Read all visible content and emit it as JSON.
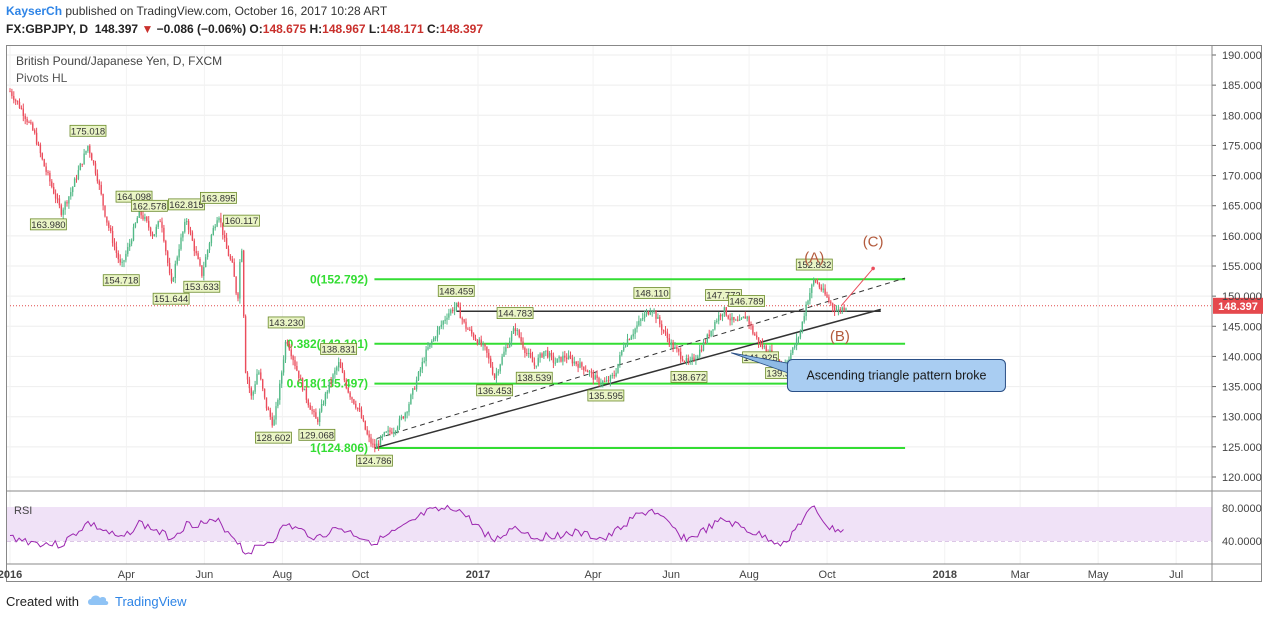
{
  "header": {
    "author": "KayserCh",
    "published": "published on TradingView.com, October 16, 2017 10:28 ART",
    "symbol_line": "FX:GBPJPY, D",
    "last": "148.397",
    "arrow": "▼",
    "change": "−0.086 (−0.06%)",
    "o_label": "O:",
    "o": "148.675",
    "h_label": "H:",
    "h": "148.967",
    "l_label": "L:",
    "l": "148.171",
    "c_label": "C:",
    "c": "148.397"
  },
  "instrument": "British Pound/Japanese Yen, D, FXCM",
  "indicator": "Pivots HL",
  "rsi_label": "RSI",
  "footer": {
    "created_with": "Created with",
    "brand": "TradingView"
  },
  "colors": {
    "up": "#53b987",
    "down": "#eb4d5c",
    "fib": "#33dd33",
    "rsi": "#9c27b0",
    "wave": "#b35a3c",
    "price_line": "#e04a4a"
  },
  "chart_data": {
    "type": "line",
    "title": "British Pound/Japanese Yen, D, FXCM",
    "price_axis": {
      "ticks": [
        120,
        125,
        130,
        135,
        140,
        145,
        150,
        155,
        160,
        165,
        170,
        175,
        180,
        185,
        190
      ],
      "tick_labels": [
        "120.000",
        "125.000",
        "130.000",
        "135.000",
        "140.000",
        "145.000",
        "150.000",
        "155.000",
        "160.000",
        "165.000",
        "170.000",
        "175.000",
        "180.000",
        "185.000",
        "190.000"
      ]
    },
    "time_axis": {
      "labels": [
        "2016",
        "Apr",
        "Jun",
        "Aug",
        "Oct",
        "2017",
        "Apr",
        "Jun",
        "Aug",
        "Oct",
        "2018",
        "Mar",
        "May",
        "Jul"
      ],
      "values": [
        "2016-01-01",
        "2016-04-01",
        "2016-06-01",
        "2016-08-01",
        "2016-10-01",
        "2017-01-01",
        "2017-04-01",
        "2017-06-01",
        "2017-08-01",
        "2017-10-01",
        "2018-01-01",
        "2018-03-01",
        "2018-05-01",
        "2018-07-01"
      ]
    },
    "series": [
      {
        "values": [
          [
            "2016-01-01",
            184.0
          ],
          [
            "2016-01-10",
            181.0
          ],
          [
            "2016-01-20",
            177.0
          ],
          [
            "2016-01-27",
            172.0
          ],
          [
            "2016-02-03",
            168.0
          ],
          [
            "2016-02-10",
            164.0
          ],
          [
            "2016-02-17",
            167.0
          ],
          [
            "2016-02-24",
            171.0
          ],
          [
            "2016-03-02",
            175.0
          ],
          [
            "2016-03-09",
            170.0
          ],
          [
            "2016-03-16",
            163.0
          ],
          [
            "2016-03-23",
            158.0
          ],
          [
            "2016-03-28",
            154.7
          ],
          [
            "2016-04-04",
            159.0
          ],
          [
            "2016-04-11",
            164.0
          ],
          [
            "2016-04-16",
            162.5
          ],
          [
            "2016-04-22",
            160.0
          ],
          [
            "2016-04-28",
            163.0
          ],
          [
            "2016-05-03",
            156.0
          ],
          [
            "2016-05-06",
            151.6
          ],
          [
            "2016-05-12",
            158.0
          ],
          [
            "2016-05-18",
            162.8
          ],
          [
            "2016-05-24",
            158.0
          ],
          [
            "2016-05-30",
            153.6
          ],
          [
            "2016-06-05",
            159.0
          ],
          [
            "2016-06-12",
            163.9
          ],
          [
            "2016-06-18",
            158.0
          ],
          [
            "2016-06-23",
            155.0
          ],
          [
            "2016-06-27",
            149.0
          ],
          [
            "2016-06-30",
            160.1
          ],
          [
            "2016-07-03",
            138.0
          ],
          [
            "2016-07-08",
            133.0
          ],
          [
            "2016-07-13",
            138.0
          ],
          [
            "2016-07-19",
            132.0
          ],
          [
            "2016-07-25",
            128.6
          ],
          [
            "2016-07-30",
            135.0
          ],
          [
            "2016-08-04",
            143.2
          ],
          [
            "2016-08-12",
            138.0
          ],
          [
            "2016-08-20",
            133.0
          ],
          [
            "2016-08-28",
            129.1
          ],
          [
            "2016-09-06",
            135.0
          ],
          [
            "2016-09-14",
            138.8
          ],
          [
            "2016-09-22",
            134.0
          ],
          [
            "2016-09-30",
            131.0
          ],
          [
            "2016-10-07",
            126.5
          ],
          [
            "2016-10-12",
            124.8
          ],
          [
            "2016-10-20",
            127.0
          ],
          [
            "2016-10-28",
            128.0
          ],
          [
            "2016-11-06",
            131.0
          ],
          [
            "2016-11-14",
            136.0
          ],
          [
            "2016-11-22",
            141.0
          ],
          [
            "2016-11-30",
            144.0
          ],
          [
            "2016-12-08",
            147.0
          ],
          [
            "2016-12-15",
            148.5
          ],
          [
            "2016-12-22",
            145.0
          ],
          [
            "2016-12-30",
            143.0
          ],
          [
            "2017-01-07",
            141.0
          ],
          [
            "2017-01-14",
            136.5
          ],
          [
            "2017-01-22",
            141.0
          ],
          [
            "2017-01-30",
            144.8
          ],
          [
            "2017-02-07",
            141.0
          ],
          [
            "2017-02-14",
            138.5
          ],
          [
            "2017-02-22",
            141.0
          ],
          [
            "2017-03-02",
            139.0
          ],
          [
            "2017-03-10",
            140.0
          ],
          [
            "2017-03-18",
            139.0
          ],
          [
            "2017-03-26",
            138.0
          ],
          [
            "2017-04-04",
            136.0
          ],
          [
            "2017-04-11",
            135.6
          ],
          [
            "2017-04-18",
            137.0
          ],
          [
            "2017-04-25",
            142.0
          ],
          [
            "2017-05-02",
            144.0
          ],
          [
            "2017-05-10",
            146.5
          ],
          [
            "2017-05-17",
            148.1
          ],
          [
            "2017-05-24",
            145.0
          ],
          [
            "2017-06-01",
            142.0
          ],
          [
            "2017-06-09",
            140.0
          ],
          [
            "2017-06-15",
            138.7
          ],
          [
            "2017-06-22",
            140.5
          ],
          [
            "2017-06-29",
            143.0
          ],
          [
            "2017-07-06",
            146.0
          ],
          [
            "2017-07-12",
            147.8
          ],
          [
            "2017-07-18",
            146.0
          ],
          [
            "2017-07-24",
            145.5
          ],
          [
            "2017-07-30",
            146.8
          ],
          [
            "2017-08-04",
            144.0
          ],
          [
            "2017-08-10",
            141.9
          ],
          [
            "2017-08-16",
            141.0
          ],
          [
            "2017-08-22",
            139.5
          ],
          [
            "2017-08-28",
            138.5
          ],
          [
            "2017-09-04",
            141.0
          ],
          [
            "2017-09-10",
            144.0
          ],
          [
            "2017-09-15",
            149.0
          ],
          [
            "2017-09-21",
            152.8
          ],
          [
            "2017-09-27",
            151.0
          ],
          [
            "2017-10-03",
            149.0
          ],
          [
            "2017-10-09",
            147.5
          ],
          [
            "2017-10-16",
            148.4
          ]
        ]
      }
    ],
    "pivot_labels": [
      {
        "date": "2016-03-02",
        "price": 175.018,
        "label": "175.018"
      },
      {
        "date": "2016-01-31",
        "price": 163.98,
        "label": "163.980"
      },
      {
        "date": "2016-04-07",
        "price": 164.098,
        "label": "164.098"
      },
      {
        "date": "2016-04-19",
        "price": 162.578,
        "label": "162.578"
      },
      {
        "date": "2016-05-18",
        "price": 162.815,
        "label": "162.815"
      },
      {
        "date": "2016-06-12",
        "price": 163.895,
        "label": "163.895"
      },
      {
        "date": "2016-06-30",
        "price": 160.117,
        "label": "160.117"
      },
      {
        "date": "2016-03-28",
        "price": 154.718,
        "label": "154.718"
      },
      {
        "date": "2016-05-06",
        "price": 151.644,
        "label": "151.644"
      },
      {
        "date": "2016-05-30",
        "price": 153.633,
        "label": "153.633"
      },
      {
        "date": "2016-08-04",
        "price": 143.23,
        "label": "143.230"
      },
      {
        "date": "2016-09-14",
        "price": 138.831,
        "label": "138.831"
      },
      {
        "date": "2016-07-25",
        "price": 128.602,
        "label": "128.602"
      },
      {
        "date": "2016-08-28",
        "price": 129.068,
        "label": "129.068"
      },
      {
        "date": "2016-10-12",
        "price": 124.786,
        "label": "124.786"
      },
      {
        "date": "2016-12-15",
        "price": 148.459,
        "label": "148.459"
      },
      {
        "date": "2017-01-30",
        "price": 144.783,
        "label": "144.783"
      },
      {
        "date": "2017-01-14",
        "price": 136.453,
        "label": "136.453"
      },
      {
        "date": "2017-02-14",
        "price": 138.539,
        "label": "138.539"
      },
      {
        "date": "2017-04-11",
        "price": 135.595,
        "label": "135.595"
      },
      {
        "date": "2017-05-17",
        "price": 148.11,
        "label": "148.110"
      },
      {
        "date": "2017-06-15",
        "price": 138.672,
        "label": "138.672"
      },
      {
        "date": "2017-07-12",
        "price": 147.772,
        "label": "147.772"
      },
      {
        "date": "2017-07-30",
        "price": 146.789,
        "label": "146.789"
      },
      {
        "date": "2017-08-10",
        "price": 141.925,
        "label": "141.925"
      },
      {
        "date": "2017-08-28",
        "price": 139.305,
        "label": "139.305"
      },
      {
        "date": "2017-09-21",
        "price": 152.832,
        "label": "152.832"
      }
    ],
    "fib_levels": [
      {
        "label": "0(152.792)",
        "price": 152.792
      },
      {
        "label": "0.382(142.101)",
        "price": 142.101
      },
      {
        "label": "0.618(135.497)",
        "price": 135.497
      },
      {
        "label": "1(124.806)",
        "price": 124.806
      }
    ],
    "annotations": {
      "wave_a": "(A)",
      "wave_b": "(B)",
      "wave_c": "(C)",
      "callout": "Ascending triangle pattern broke",
      "current_price_label": "148.397"
    },
    "rsi": {
      "ticks": [
        40,
        80
      ],
      "tick_labels": [
        "40.0000",
        "80.0000"
      ],
      "values": [
        [
          "2016-01-01",
          45
        ],
        [
          "2016-01-20",
          38
        ],
        [
          "2016-02-10",
          35
        ],
        [
          "2016-03-02",
          62
        ],
        [
          "2016-03-28",
          42
        ],
        [
          "2016-04-11",
          62
        ],
        [
          "2016-05-06",
          44
        ],
        [
          "2016-05-18",
          60
        ],
        [
          "2016-06-12",
          63
        ],
        [
          "2016-06-27",
          40
        ],
        [
          "2016-07-03",
          25
        ],
        [
          "2016-07-25",
          42
        ],
        [
          "2016-08-04",
          60
        ],
        [
          "2016-08-28",
          44
        ],
        [
          "2016-09-14",
          56
        ],
        [
          "2016-10-12",
          38
        ],
        [
          "2016-11-06",
          58
        ],
        [
          "2016-11-22",
          75
        ],
        [
          "2016-12-15",
          80
        ],
        [
          "2016-12-30",
          60
        ],
        [
          "2017-01-14",
          40
        ],
        [
          "2017-01-30",
          58
        ],
        [
          "2017-02-14",
          44
        ],
        [
          "2017-03-18",
          50
        ],
        [
          "2017-04-11",
          42
        ],
        [
          "2017-05-02",
          68
        ],
        [
          "2017-05-17",
          78
        ],
        [
          "2017-06-09",
          46
        ],
        [
          "2017-06-15",
          42
        ],
        [
          "2017-07-12",
          66
        ],
        [
          "2017-08-04",
          50
        ],
        [
          "2017-08-28",
          36
        ],
        [
          "2017-09-15",
          72
        ],
        [
          "2017-09-21",
          80
        ],
        [
          "2017-10-03",
          55
        ],
        [
          "2017-10-16",
          52
        ]
      ]
    }
  }
}
